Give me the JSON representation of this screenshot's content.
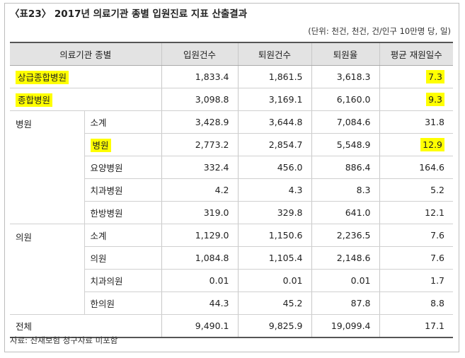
{
  "title": "〈표23〉 2017년 의료기관 종별 입원진료 지표 산출결과",
  "unit": "(단위: 천건, 천건, 건/인구 10만명 당, 일)",
  "headers": [
    "의료기관 종별",
    "입원건수",
    "퇴원건수",
    "퇴원율",
    "평균 재원일수"
  ],
  "rows": [
    {
      "cat": "상급종합병원",
      "sub": "",
      "v": [
        "1,833.4",
        "1,861.5",
        "3,618.3",
        "7.3"
      ]
    },
    {
      "cat": "종합병원",
      "sub": "",
      "v": [
        "3,098.8",
        "3,169.1",
        "6,160.0",
        "9.3"
      ]
    },
    {
      "cat": "병원",
      "sub": "소계",
      "v": [
        "3,428.9",
        "3,644.8",
        "7,084.6",
        "31.8"
      ]
    },
    {
      "cat": "",
      "sub": "병원",
      "v": [
        "2,773.2",
        "2,854.7",
        "5,548.9",
        "12.9"
      ]
    },
    {
      "cat": "",
      "sub": "요양병원",
      "v": [
        "332.4",
        "456.0",
        "886.4",
        "164.6"
      ]
    },
    {
      "cat": "",
      "sub": "치과병원",
      "v": [
        "4.2",
        "4.3",
        "8.3",
        "5.2"
      ]
    },
    {
      "cat": "",
      "sub": "한방병원",
      "v": [
        "319.0",
        "329.8",
        "641.0",
        "12.1"
      ]
    },
    {
      "cat": "의원",
      "sub": "소계",
      "v": [
        "1,129.0",
        "1,150.6",
        "2,236.5",
        "7.6"
      ]
    },
    {
      "cat": "",
      "sub": "의원",
      "v": [
        "1,084.8",
        "1,105.4",
        "2,148.6",
        "7.6"
      ]
    },
    {
      "cat": "",
      "sub": "치과의원",
      "v": [
        "0.01",
        "0.01",
        "0.01",
        "1.7"
      ]
    },
    {
      "cat": "",
      "sub": "한의원",
      "v": [
        "44.3",
        "45.2",
        "87.8",
        "8.8"
      ]
    },
    {
      "cat": "전체",
      "sub": "",
      "v": [
        "9,490.1",
        "9,825.9",
        "19,099.4",
        "17.1"
      ]
    }
  ],
  "note": "자료: 산재보험 청구자료 미포함",
  "highlight_color": "#ffff00"
}
